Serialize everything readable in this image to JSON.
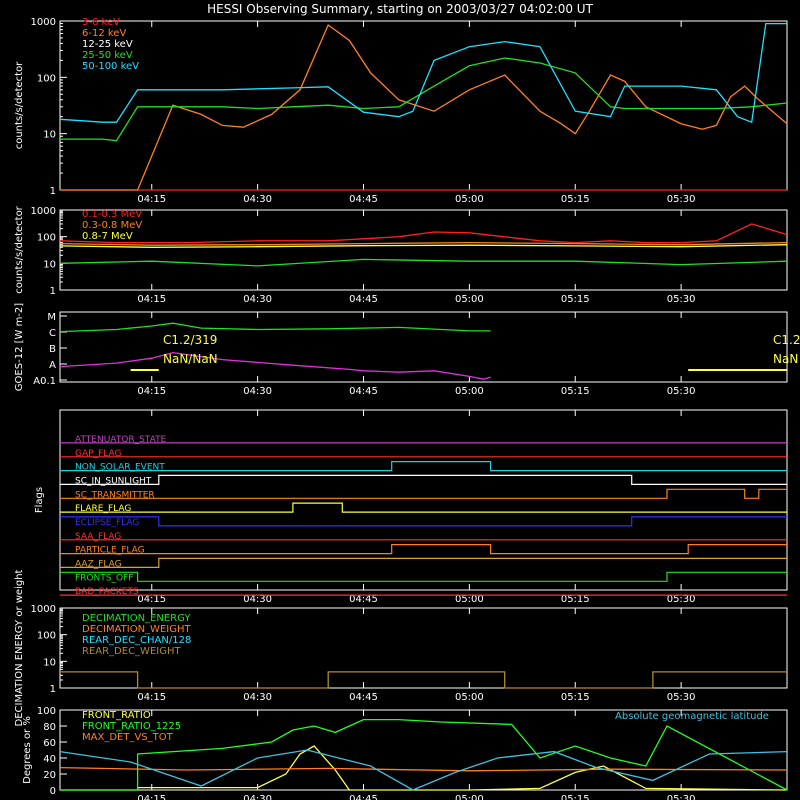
{
  "title": "HESSI Observing Summary, starting on 2003/03/27 04:02:00 UT",
  "time_ticks": [
    "04:15",
    "04:30",
    "04:45",
    "05:00",
    "05:15",
    "05:30"
  ],
  "time_tick_minutes": [
    255,
    270,
    285,
    300,
    315,
    330
  ],
  "time_range_minutes": [
    242,
    345
  ],
  "chart_data": [
    {
      "type": "line",
      "panel": "lightcurves-low",
      "ylabel": "counts/s/detector",
      "yscale": "log",
      "ylim": [
        1,
        1000
      ],
      "yticks": [
        "1",
        "10",
        "100",
        "1000"
      ],
      "legend_position": "top-left",
      "series": [
        {
          "name": "3-6 keV",
          "color": "#ff2020",
          "x": [
            242,
            253,
            253.5,
            270,
            285,
            292,
            297,
            305,
            315,
            320,
            323,
            345
          ],
          "y": [
            1,
            1,
            1,
            1,
            1,
            1,
            1,
            1,
            1,
            1,
            1,
            1
          ]
        },
        {
          "name": "6-12 keV",
          "color": "#ff8020",
          "x": [
            242,
            248,
            251,
            253,
            258,
            262,
            265,
            268,
            272,
            276,
            280,
            283,
            286,
            290,
            295,
            300,
            305,
            310,
            313,
            315,
            317,
            320,
            322,
            325,
            330,
            333,
            335,
            337,
            339,
            341,
            345
          ],
          "y": [
            1,
            1,
            1,
            1,
            32,
            22,
            14,
            13,
            22,
            60,
            850,
            450,
            120,
            40,
            25,
            60,
            110,
            25,
            15,
            10,
            25,
            110,
            85,
            30,
            15,
            12,
            14,
            45,
            70,
            40,
            15
          ]
        },
        {
          "name": "12-25 keV",
          "color": "#ffffff",
          "x": [
            242
          ],
          "y": [
            1
          ]
        },
        {
          "name": "25-50 keV",
          "color": "#20e020",
          "x": [
            242,
            248,
            250,
            253,
            265,
            270,
            275,
            280,
            285,
            290,
            295,
            300,
            305,
            310,
            315,
            320,
            322,
            330,
            335,
            340,
            345
          ],
          "y": [
            8,
            8,
            7.5,
            30,
            30,
            28,
            30,
            32,
            28,
            30,
            70,
            160,
            220,
            180,
            120,
            30,
            28,
            28,
            28,
            30,
            35
          ]
        },
        {
          "name": "50-100 keV",
          "color": "#20e0ff",
          "x": [
            242,
            245,
            248,
            250,
            253,
            265,
            275,
            280,
            285,
            290,
            292,
            295,
            300,
            305,
            310,
            315,
            320,
            322,
            330,
            335,
            338,
            340,
            342,
            345
          ],
          "y": [
            18,
            17,
            16,
            16,
            60,
            60,
            65,
            68,
            24,
            20,
            25,
            200,
            350,
            430,
            350,
            25,
            20,
            70,
            70,
            60,
            20,
            16,
            900,
            900
          ]
        }
      ]
    },
    {
      "type": "line",
      "panel": "lightcurves-high",
      "ylabel": "counts/s/detector",
      "yscale": "log",
      "ylim": [
        1,
        1000
      ],
      "yticks": [
        "1",
        "10",
        "100",
        "1000"
      ],
      "series": [
        {
          "name": "0.1-0.3 MeV",
          "color": "#ff2020",
          "x": [
            242,
            250,
            260,
            270,
            280,
            290,
            295,
            300,
            310,
            315,
            320,
            325,
            330,
            335,
            340,
            345
          ],
          "y": [
            70,
            60,
            60,
            70,
            70,
            100,
            150,
            140,
            70,
            60,
            70,
            60,
            60,
            70,
            300,
            120
          ]
        },
        {
          "name": "0.3-0.8 MeV",
          "color": "#ff8020",
          "x": [
            242,
            255,
            270,
            285,
            300,
            315,
            330,
            345
          ],
          "y": [
            55,
            48,
            50,
            55,
            60,
            55,
            50,
            60
          ]
        },
        {
          "name": "0.8-7 MeV",
          "color": "#ffff40",
          "x": [
            242,
            255,
            270,
            285,
            300,
            315,
            330,
            345
          ],
          "y": [
            45,
            40,
            42,
            46,
            48,
            45,
            42,
            50
          ]
        },
        {
          "name": "",
          "color": "#20e020",
          "x": [
            242,
            255,
            270,
            285,
            300,
            315,
            330,
            345
          ],
          "y": [
            10,
            12,
            8,
            14,
            12,
            12,
            9,
            12
          ]
        }
      ]
    },
    {
      "type": "line",
      "panel": "goes",
      "ylabel": "GOES-12 [W m-2]",
      "yticks": [
        "A0.1",
        "A",
        "B",
        "C",
        "M"
      ],
      "annotations": [
        "C1.2/319",
        "NaN/NaN",
        "C1.2",
        "NaN"
      ],
      "series": [
        {
          "name": "",
          "color": "#20e020",
          "x": [
            242,
            250,
            255,
            258,
            262,
            270,
            280,
            290,
            300,
            303
          ],
          "y": [
            0.72,
            0.75,
            0.8,
            0.84,
            0.77,
            0.75,
            0.76,
            0.78,
            0.73,
            0.73
          ]
        },
        {
          "name": "",
          "color": "#e030e0",
          "x": [
            242,
            250,
            255,
            258,
            265,
            275,
            283,
            285,
            290,
            295,
            300,
            302,
            303
          ],
          "y": [
            0.22,
            0.27,
            0.34,
            0.42,
            0.32,
            0.24,
            0.18,
            0.16,
            0.14,
            0.16,
            0.08,
            0.04,
            0.07
          ]
        }
      ]
    },
    {
      "type": "line",
      "panel": "flags",
      "ylabel": "Flags",
      "flags": [
        {
          "name": "ATTENUATOR_STATE",
          "color": "#c040c0",
          "x": [
            242,
            345
          ],
          "y": [
            0,
            0
          ]
        },
        {
          "name": "GAP_FLAG",
          "color": "#ff3030",
          "x": [
            242,
            345
          ],
          "y": [
            0,
            0
          ]
        },
        {
          "name": "NON_SOLAR_EVENT",
          "color": "#20d0e0",
          "x": [
            242,
            289,
            289,
            303,
            303,
            345
          ],
          "y": [
            0,
            0,
            1,
            1,
            0,
            0
          ]
        },
        {
          "name": "SC_IN_SUNLIGHT",
          "color": "#ffffff",
          "x": [
            242,
            256,
            256,
            323,
            323,
            345
          ],
          "y": [
            0,
            0,
            1,
            1,
            0,
            0
          ]
        },
        {
          "name": "SC_TRANSMITTER",
          "color": "#ff8020",
          "x": [
            242,
            328,
            328,
            339,
            339,
            341,
            341,
            345
          ],
          "y": [
            0,
            0,
            1,
            1,
            0,
            0,
            1,
            1
          ]
        },
        {
          "name": "FLARE_FLAG",
          "color": "#ffff40",
          "x": [
            242,
            275,
            275,
            282,
            282,
            345
          ],
          "y": [
            0,
            0,
            1,
            1,
            0,
            0
          ]
        },
        {
          "name": "ECLIPSE_FLAG",
          "color": "#3030ff",
          "x": [
            242,
            256,
            256,
            323,
            323,
            345
          ],
          "y": [
            1,
            1,
            0,
            0,
            1,
            1
          ]
        },
        {
          "name": "SAA_FLAG",
          "color": "#ff3030",
          "x": [
            242,
            345
          ],
          "y": [
            0,
            0
          ]
        },
        {
          "name": "PARTICLE_FLAG",
          "color": "#ff8020",
          "x": [
            242,
            289,
            289,
            303,
            303,
            331,
            331,
            345
          ],
          "y": [
            0,
            0,
            1,
            1,
            0,
            0,
            1,
            1
          ]
        },
        {
          "name": "AAZ_FLAG",
          "color": "#e0a030",
          "x": [
            242,
            256,
            256,
            345
          ],
          "y": [
            0,
            0,
            1,
            1
          ]
        },
        {
          "name": "FRONTS_OFF",
          "color": "#20e020",
          "x": [
            242,
            253,
            253,
            328,
            328,
            345
          ],
          "y": [
            1,
            1,
            0,
            0,
            1,
            1
          ]
        },
        {
          "name": "BAD_PACKETS",
          "color": "#ff3030",
          "x": [
            242,
            345
          ],
          "y": [
            0,
            0
          ]
        }
      ]
    },
    {
      "type": "line",
      "panel": "decimation",
      "ylabel": "DECIMATION ENERGY or weight",
      "yscale": "log",
      "ylim": [
        1,
        1000
      ],
      "yticks": [
        "1",
        "10",
        "100",
        "1000"
      ],
      "series": [
        {
          "name": "DECIMATION_ENERGY",
          "color": "#20e020",
          "x": [
            242
          ],
          "y": [
            1
          ]
        },
        {
          "name": "DECIMATION_WEIGHT",
          "color": "#ff8020",
          "x": [
            242
          ],
          "y": [
            1
          ]
        },
        {
          "name": "REAR_DEC_CHAN/128",
          "color": "#20e0ff",
          "x": [
            242
          ],
          "y": [
            1
          ]
        },
        {
          "name": "REAR_DEC_WEIGHT",
          "color": "#b08a30",
          "x": [
            242,
            253,
            253,
            280,
            280,
            305,
            305,
            326,
            326,
            345
          ],
          "y": [
            4,
            4,
            1,
            1,
            4,
            4,
            1,
            1,
            4,
            4
          ]
        }
      ]
    },
    {
      "type": "line",
      "panel": "ratios",
      "ylabel": "Degrees or %",
      "ylim": [
        0,
        100
      ],
      "yticks": [
        "0",
        "20",
        "40",
        "60",
        "80",
        "100"
      ],
      "annotation": "Absolute geomagnetic latitude",
      "series": [
        {
          "name": "FRONT_RATIO",
          "color": "#ffff40",
          "x": [
            242,
            253,
            253,
            270,
            274,
            276,
            278,
            281,
            283,
            300,
            310,
            315,
            319,
            325,
            345
          ],
          "y": [
            0,
            0,
            3,
            3,
            20,
            45,
            55,
            25,
            0,
            0,
            2,
            22,
            30,
            2,
            0
          ]
        },
        {
          "name": "FRONT_RATIO_1225",
          "color": "#20ff20",
          "x": [
            242,
            253,
            253,
            265,
            272,
            275,
            278,
            281,
            285,
            290,
            296,
            306,
            310,
            315,
            320,
            325,
            328,
            345
          ],
          "y": [
            0,
            0,
            45,
            52,
            60,
            75,
            80,
            72,
            88,
            88,
            85,
            82,
            40,
            55,
            40,
            30,
            80,
            0
          ]
        },
        {
          "name": "MAX_DET_VS_TOT",
          "color": "#ff8020",
          "x": [
            242,
            260,
            280,
            300,
            320,
            345
          ],
          "y": [
            28,
            25,
            27,
            24,
            26,
            25
          ]
        },
        {
          "name": "",
          "color": "#40c0e0",
          "x": [
            242,
            252,
            262,
            270,
            277,
            286,
            292,
            298,
            304,
            312,
            318,
            326,
            334,
            345
          ],
          "y": [
            48,
            35,
            5,
            40,
            50,
            30,
            0,
            22,
            40,
            48,
            28,
            12,
            45,
            48
          ]
        }
      ]
    }
  ]
}
